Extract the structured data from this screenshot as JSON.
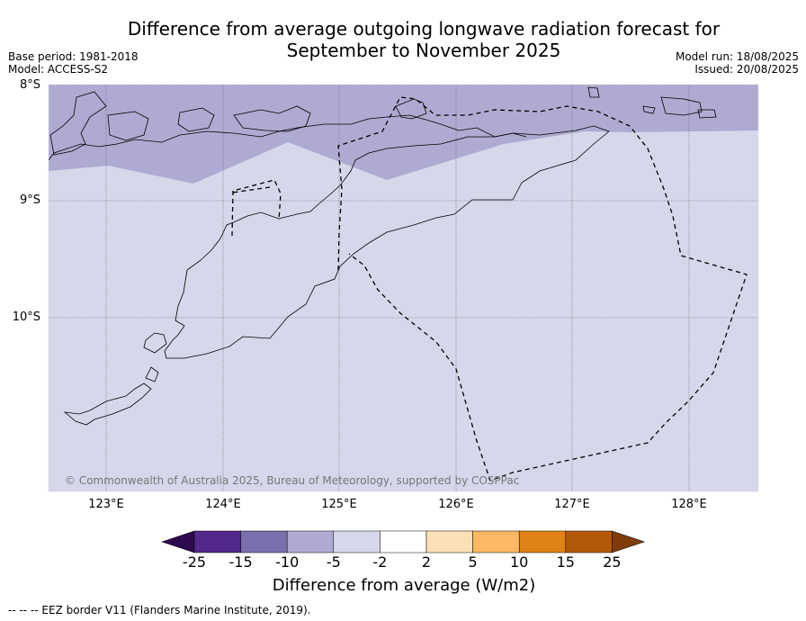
{
  "title_line1": "Difference from average outgoing longwave radiation forecast for",
  "title_line2": "September to November 2025",
  "base_period": "Base period: 1981-2018",
  "model": "Model: ACCESS-S2",
  "model_run": "Model run: 18/08/2025",
  "issued": "Issued: 20/08/2025",
  "copyright": "© Commonwealth of Australia 2025, Bureau of Meteorology, supported by COSPPac",
  "lat_labels": [
    "8°S",
    "9°S",
    "10°S"
  ],
  "lon_labels": [
    "123°E",
    "124°E",
    "125°E",
    "126°E",
    "127°E",
    "128°E"
  ],
  "colorbar": {
    "title": "Difference from average (W/m2)",
    "ticks": [
      "-25",
      "-15",
      "-10",
      "-5",
      "-2",
      "2",
      "5",
      "10",
      "15",
      "25"
    ],
    "colors": [
      "#2d0a4e",
      "#52288a",
      "#7b6fae",
      "#afaad2",
      "#d6d7ea",
      "#ffffff",
      "#fee0b6",
      "#fdb863",
      "#e08214",
      "#b35806",
      "#7f3b08"
    ]
  },
  "map_fill": {
    "dominant_color": "#d6d7ea",
    "north_band_color": "#afaad2"
  },
  "footer": "--  --  -- EEZ border V11 (Flanders Marine Institute, 2019)."
}
